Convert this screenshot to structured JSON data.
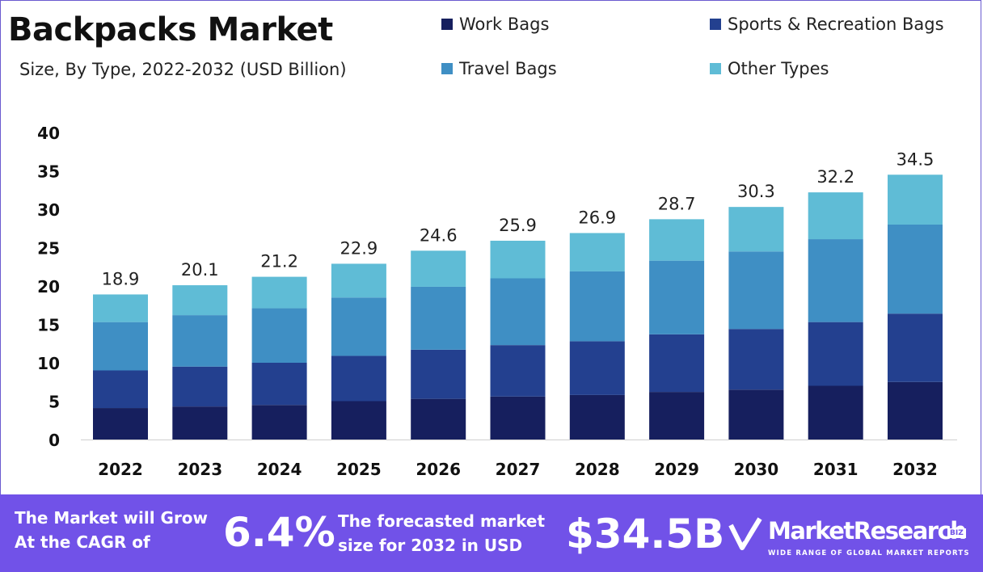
{
  "header": {
    "title": "Backpacks Market",
    "subtitle": "Size, By Type, 2022-2032 (USD Billion)"
  },
  "legend": [
    {
      "label": "Work Bags",
      "color": "#161f5e"
    },
    {
      "label": "Sports & Recreation Bags",
      "color": "#23408f"
    },
    {
      "label": "Travel Bags",
      "color": "#3f8fc4"
    },
    {
      "label": "Other Types",
      "color": "#5fbcd6"
    }
  ],
  "chart_data": {
    "type": "bar",
    "stacked": true,
    "categories": [
      "2022",
      "2023",
      "2024",
      "2025",
      "2026",
      "2027",
      "2028",
      "2029",
      "2030",
      "2031",
      "2032"
    ],
    "totals": [
      "18.9",
      "20.1",
      "21.2",
      "22.9",
      "24.6",
      "25.9",
      "26.9",
      "28.7",
      "30.3",
      "32.2",
      "34.5"
    ],
    "series": [
      {
        "name": "Work Bags",
        "color": "#161f5e",
        "values": [
          4.1,
          4.3,
          4.5,
          5.0,
          5.3,
          5.6,
          5.8,
          6.2,
          6.5,
          7.0,
          7.5
        ]
      },
      {
        "name": "Sports & Recreation Bags",
        "color": "#23408f",
        "values": [
          4.9,
          5.2,
          5.5,
          5.9,
          6.4,
          6.7,
          7.0,
          7.5,
          7.9,
          8.3,
          8.9
        ]
      },
      {
        "name": "Travel Bags",
        "color": "#3f8fc4",
        "values": [
          6.3,
          6.7,
          7.1,
          7.6,
          8.2,
          8.7,
          9.1,
          9.6,
          10.1,
          10.8,
          11.6
        ]
      },
      {
        "name": "Other Types",
        "color": "#5fbcd6",
        "values": [
          3.6,
          3.9,
          4.1,
          4.4,
          4.7,
          4.9,
          5.0,
          5.4,
          5.8,
          6.1,
          6.5
        ]
      }
    ],
    "yticks": [
      "0",
      "5",
      "10",
      "15",
      "20",
      "25",
      "30",
      "35",
      "40"
    ],
    "ylim": [
      0,
      40
    ],
    "grid": false,
    "legend_position": "top-right"
  },
  "banner": {
    "cagr_text": "The Market will Grow At the CAGR of",
    "cagr_value": "6.4%",
    "forecast_text": "The forecasted market size for 2032 in USD",
    "forecast_value": "$34.5B",
    "logo_name": "MarketResearch",
    "logo_biz": "BIZ",
    "logo_tagline": "WIDE RANGE OF GLOBAL MARKET REPORTS"
  }
}
